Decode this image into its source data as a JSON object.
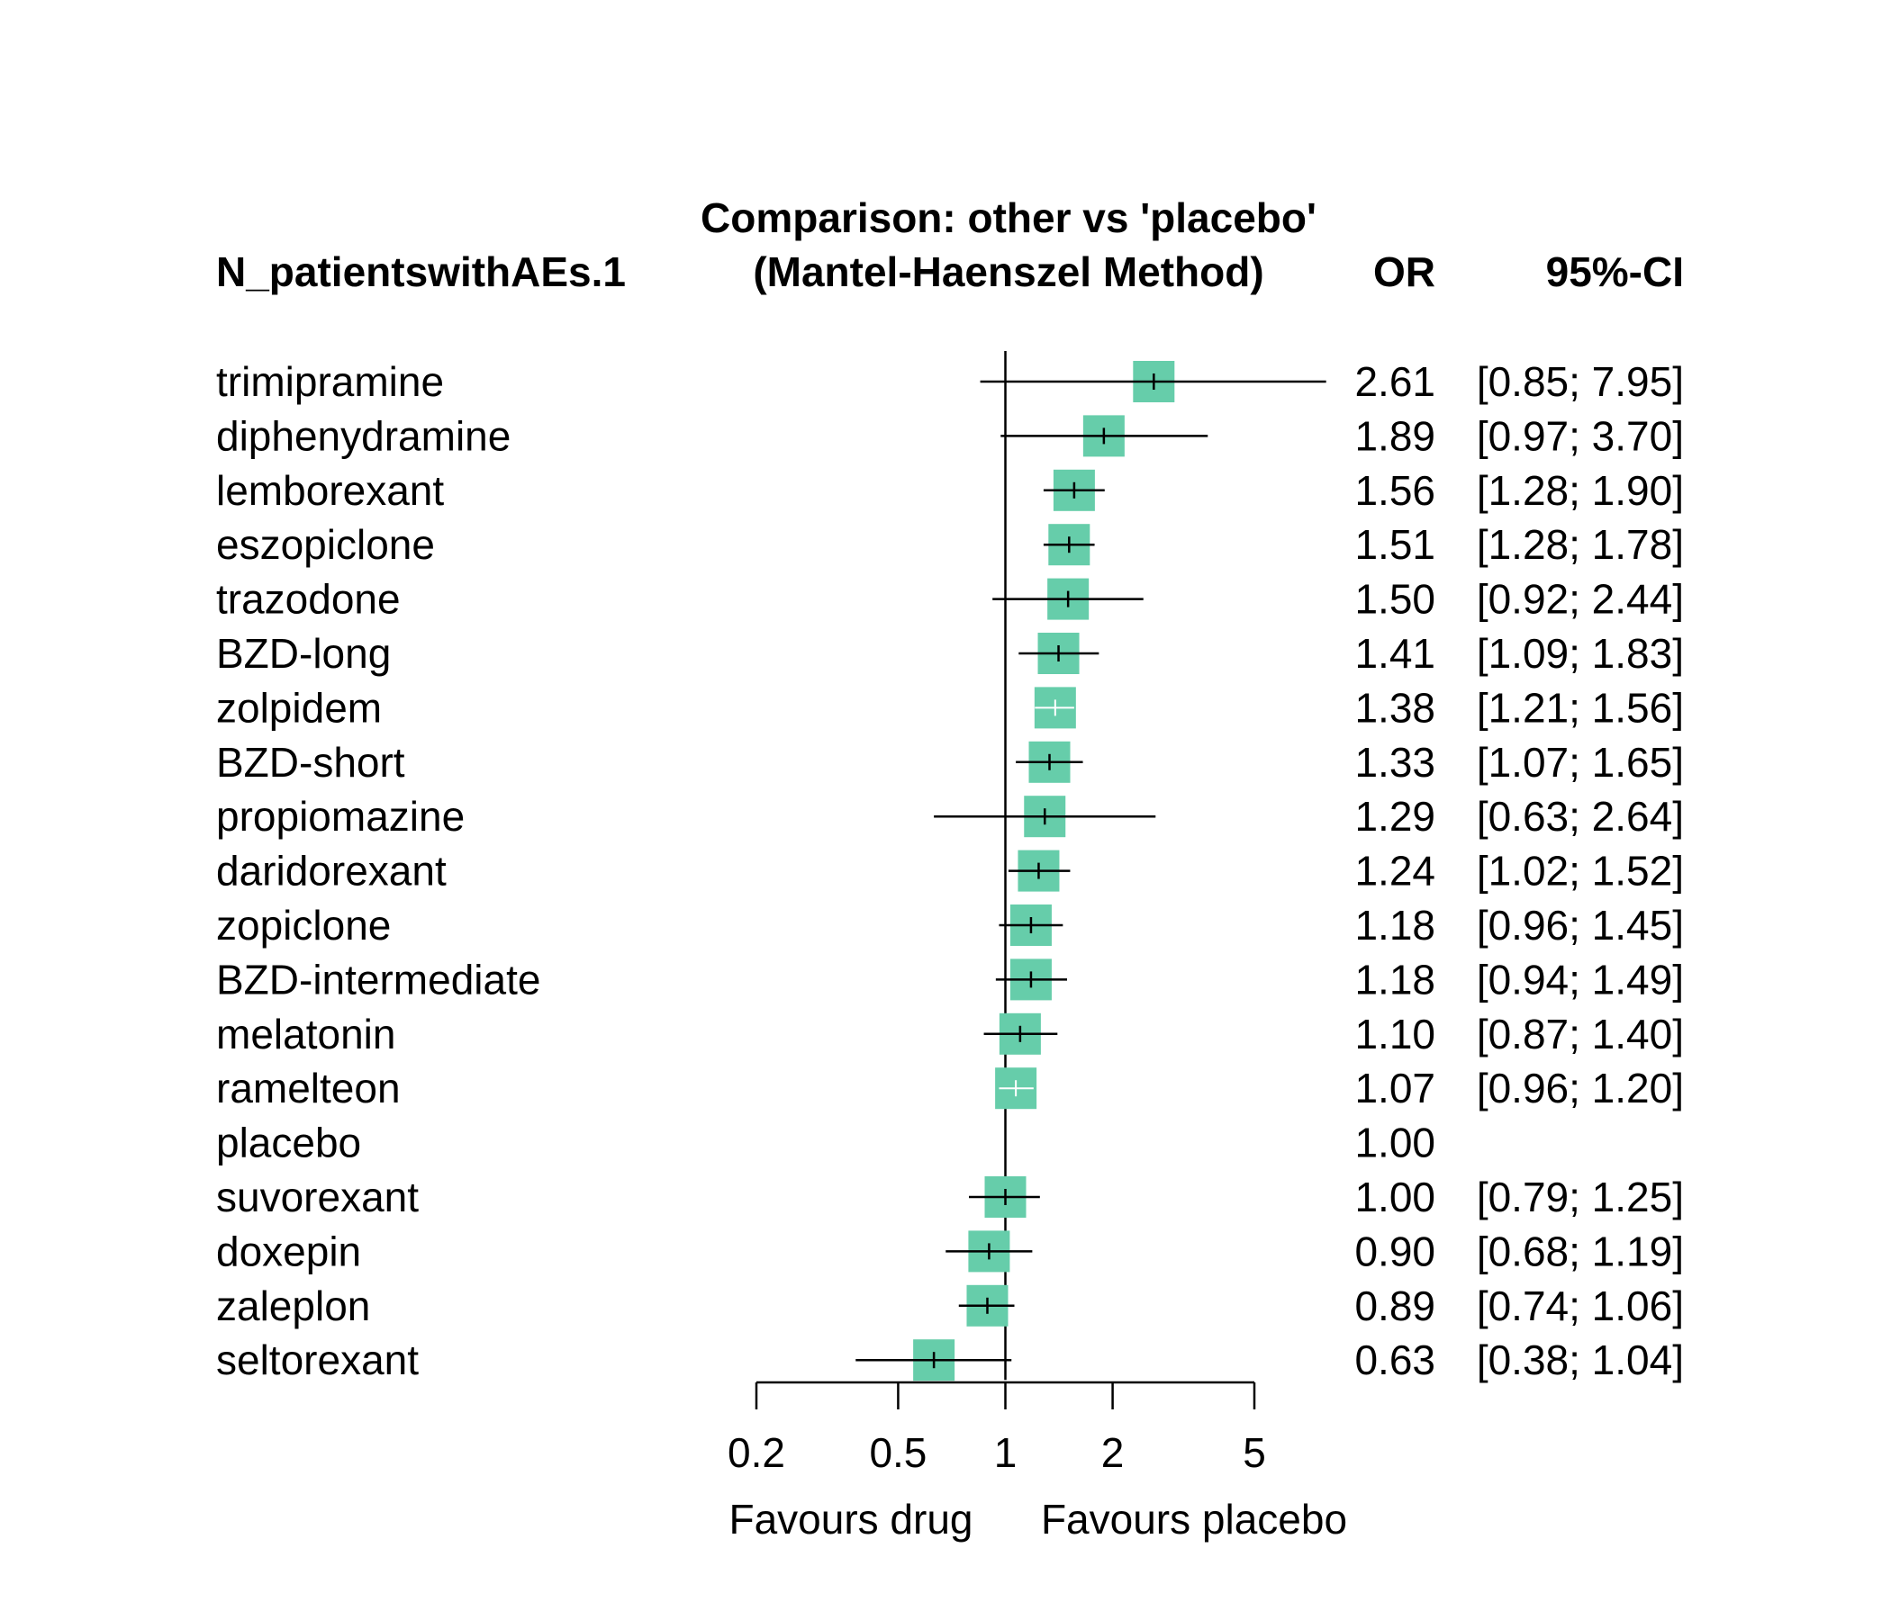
{
  "header": {
    "outcome_label": "N_patientswithAEs.1",
    "comparison_line1": "Comparison: other vs 'placebo'",
    "comparison_line2": "(Mantel-Haenszel Method)",
    "or_col": "OR",
    "ci_col": "95%-CI"
  },
  "axis": {
    "ticks": [
      0.2,
      0.5,
      1,
      2,
      5
    ],
    "tick_labels": [
      "0.2",
      "0.5",
      "1",
      "2",
      "5"
    ],
    "favours_left": "Favours drug",
    "favours_right": "Favours placebo",
    "scale": "log"
  },
  "colors": {
    "box": "#66CDAA",
    "line": "#000000",
    "center_tick_on_wide_box": "#ffffff"
  },
  "chart_data": {
    "type": "forest",
    "rows": [
      {
        "label": "trimipramine",
        "or": 2.61,
        "lo": 0.85,
        "hi": 7.95,
        "or_text": "2.61",
        "ci_text": "[0.85; 7.95]"
      },
      {
        "label": "diphenydramine",
        "or": 1.89,
        "lo": 0.97,
        "hi": 3.7,
        "or_text": "1.89",
        "ci_text": "[0.97; 3.70]"
      },
      {
        "label": "lemborexant",
        "or": 1.56,
        "lo": 1.28,
        "hi": 1.9,
        "or_text": "1.56",
        "ci_text": "[1.28; 1.90]"
      },
      {
        "label": "eszopiclone",
        "or": 1.51,
        "lo": 1.28,
        "hi": 1.78,
        "or_text": "1.51",
        "ci_text": "[1.28; 1.78]"
      },
      {
        "label": "trazodone",
        "or": 1.5,
        "lo": 0.92,
        "hi": 2.44,
        "or_text": "1.50",
        "ci_text": "[0.92; 2.44]"
      },
      {
        "label": "BZD-long",
        "or": 1.41,
        "lo": 1.09,
        "hi": 1.83,
        "or_text": "1.41",
        "ci_text": "[1.09; 1.83]"
      },
      {
        "label": "zolpidem",
        "or": 1.38,
        "lo": 1.21,
        "hi": 1.56,
        "or_text": "1.38",
        "ci_text": "[1.21; 1.56]"
      },
      {
        "label": "BZD-short",
        "or": 1.33,
        "lo": 1.07,
        "hi": 1.65,
        "or_text": "1.33",
        "ci_text": "[1.07; 1.65]"
      },
      {
        "label": "propiomazine",
        "or": 1.29,
        "lo": 0.63,
        "hi": 2.64,
        "or_text": "1.29",
        "ci_text": "[0.63; 2.64]"
      },
      {
        "label": "daridorexant",
        "or": 1.24,
        "lo": 1.02,
        "hi": 1.52,
        "or_text": "1.24",
        "ci_text": "[1.02; 1.52]"
      },
      {
        "label": "zopiclone",
        "or": 1.18,
        "lo": 0.96,
        "hi": 1.45,
        "or_text": "1.18",
        "ci_text": "[0.96; 1.45]"
      },
      {
        "label": "BZD-intermediate",
        "or": 1.18,
        "lo": 0.94,
        "hi": 1.49,
        "or_text": "1.18",
        "ci_text": "[0.94; 1.49]"
      },
      {
        "label": "melatonin",
        "or": 1.1,
        "lo": 0.87,
        "hi": 1.4,
        "or_text": "1.10",
        "ci_text": "[0.87; 1.40]"
      },
      {
        "label": "ramelteon",
        "or": 1.07,
        "lo": 0.96,
        "hi": 1.2,
        "or_text": "1.07",
        "ci_text": "[0.96; 1.20]"
      },
      {
        "label": "placebo",
        "or": 1.0,
        "lo": null,
        "hi": null,
        "or_text": "1.00",
        "ci_text": ""
      },
      {
        "label": "suvorexant",
        "or": 1.0,
        "lo": 0.79,
        "hi": 1.25,
        "or_text": "1.00",
        "ci_text": "[0.79; 1.25]"
      },
      {
        "label": "doxepin",
        "or": 0.9,
        "lo": 0.68,
        "hi": 1.19,
        "or_text": "0.90",
        "ci_text": "[0.68; 1.19]"
      },
      {
        "label": "zaleplon",
        "or": 0.89,
        "lo": 0.74,
        "hi": 1.06,
        "or_text": "0.89",
        "ci_text": "[0.74; 1.06]"
      },
      {
        "label": "seltorexant",
        "or": 0.63,
        "lo": 0.38,
        "hi": 1.04,
        "or_text": "0.63",
        "ci_text": "[0.38; 1.04]"
      }
    ]
  }
}
